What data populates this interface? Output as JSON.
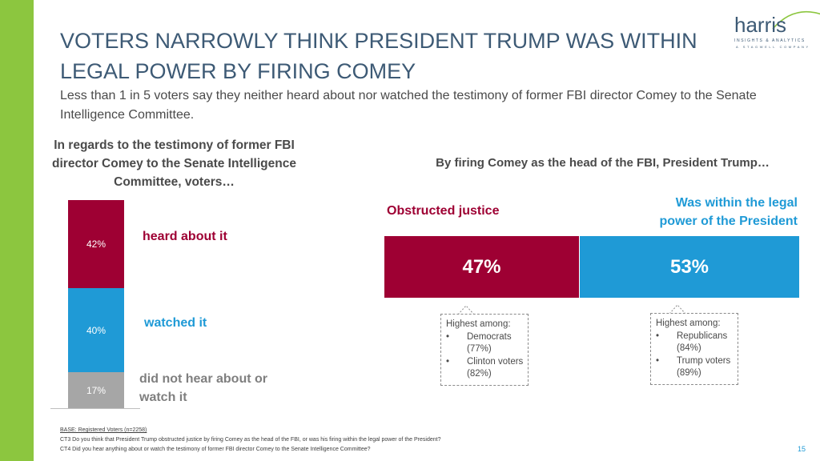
{
  "slide": {
    "title_line1": "VOTERS NARROWLY THINK PRESIDENT TRUMP WAS WITHIN",
    "title_line2": "LEGAL POWER BY FIRING COMEY",
    "subtitle": "Less than 1 in 5 voters say they neither heard about nor watched the testimony of former FBI director Comey to the Senate Intelligence Committee.",
    "page_number": "15",
    "accent_color": "#8cc63f"
  },
  "logo": {
    "word": "harris",
    "line1": "INSIGHTS & ANALYTICS",
    "line2": "A STAGWELL COMPANY"
  },
  "chart_data": [
    {
      "type": "bar",
      "title": "In regards to the testimony of former FBI director Comey to the Senate Intelligence Committee, voters…",
      "stacked": true,
      "categories": [
        "heard about it",
        "watched it",
        "did not hear about or watch it"
      ],
      "values": [
        42,
        40,
        17
      ],
      "value_labels": [
        "42%",
        "40%",
        "17%"
      ],
      "colors": [
        "#9e0033",
        "#1f9ad6",
        "#a6a6a6"
      ]
    },
    {
      "type": "bar",
      "title": "By firing Comey as the head of the FBI, President Trump…",
      "stacked": true,
      "orientation": "horizontal",
      "categories": [
        "Obstructed justice",
        "Was within the legal power of the President"
      ],
      "values": [
        47,
        53
      ],
      "value_labels": [
        "47%",
        "53%"
      ],
      "colors": [
        "#9e0033",
        "#1f9ad6"
      ]
    }
  ],
  "left_chart": {
    "heading": "In regards to the testimony of former FBI director Comey to the Senate Intelligence Committee, voters…"
  },
  "right_chart": {
    "heading": "By firing Comey as the head of the FBI, President Trump…",
    "label_obstruct": "Obstructed justice",
    "label_within_line1": "Was within the legal",
    "label_within_line2": "power of the President"
  },
  "callouts": {
    "left": {
      "heading": "Highest among:",
      "items": [
        "Democrats (77%)",
        "Clinton voters (82%)"
      ]
    },
    "right": {
      "heading": "Highest among:",
      "items": [
        "Republicans (84%)",
        "Trump voters (89%)"
      ]
    }
  },
  "footer": {
    "base": "BASE: Registered Voters (n=2258)",
    "ct3": "CT3 Do you think that President Trump obstructed justice by firing Comey as the head of the FBI, or was his firing within the legal power of the President?",
    "ct4": "CT4 Did you hear anything about or watch the testimony of former FBI director Comey to the Senate Intelligence Committee?"
  }
}
